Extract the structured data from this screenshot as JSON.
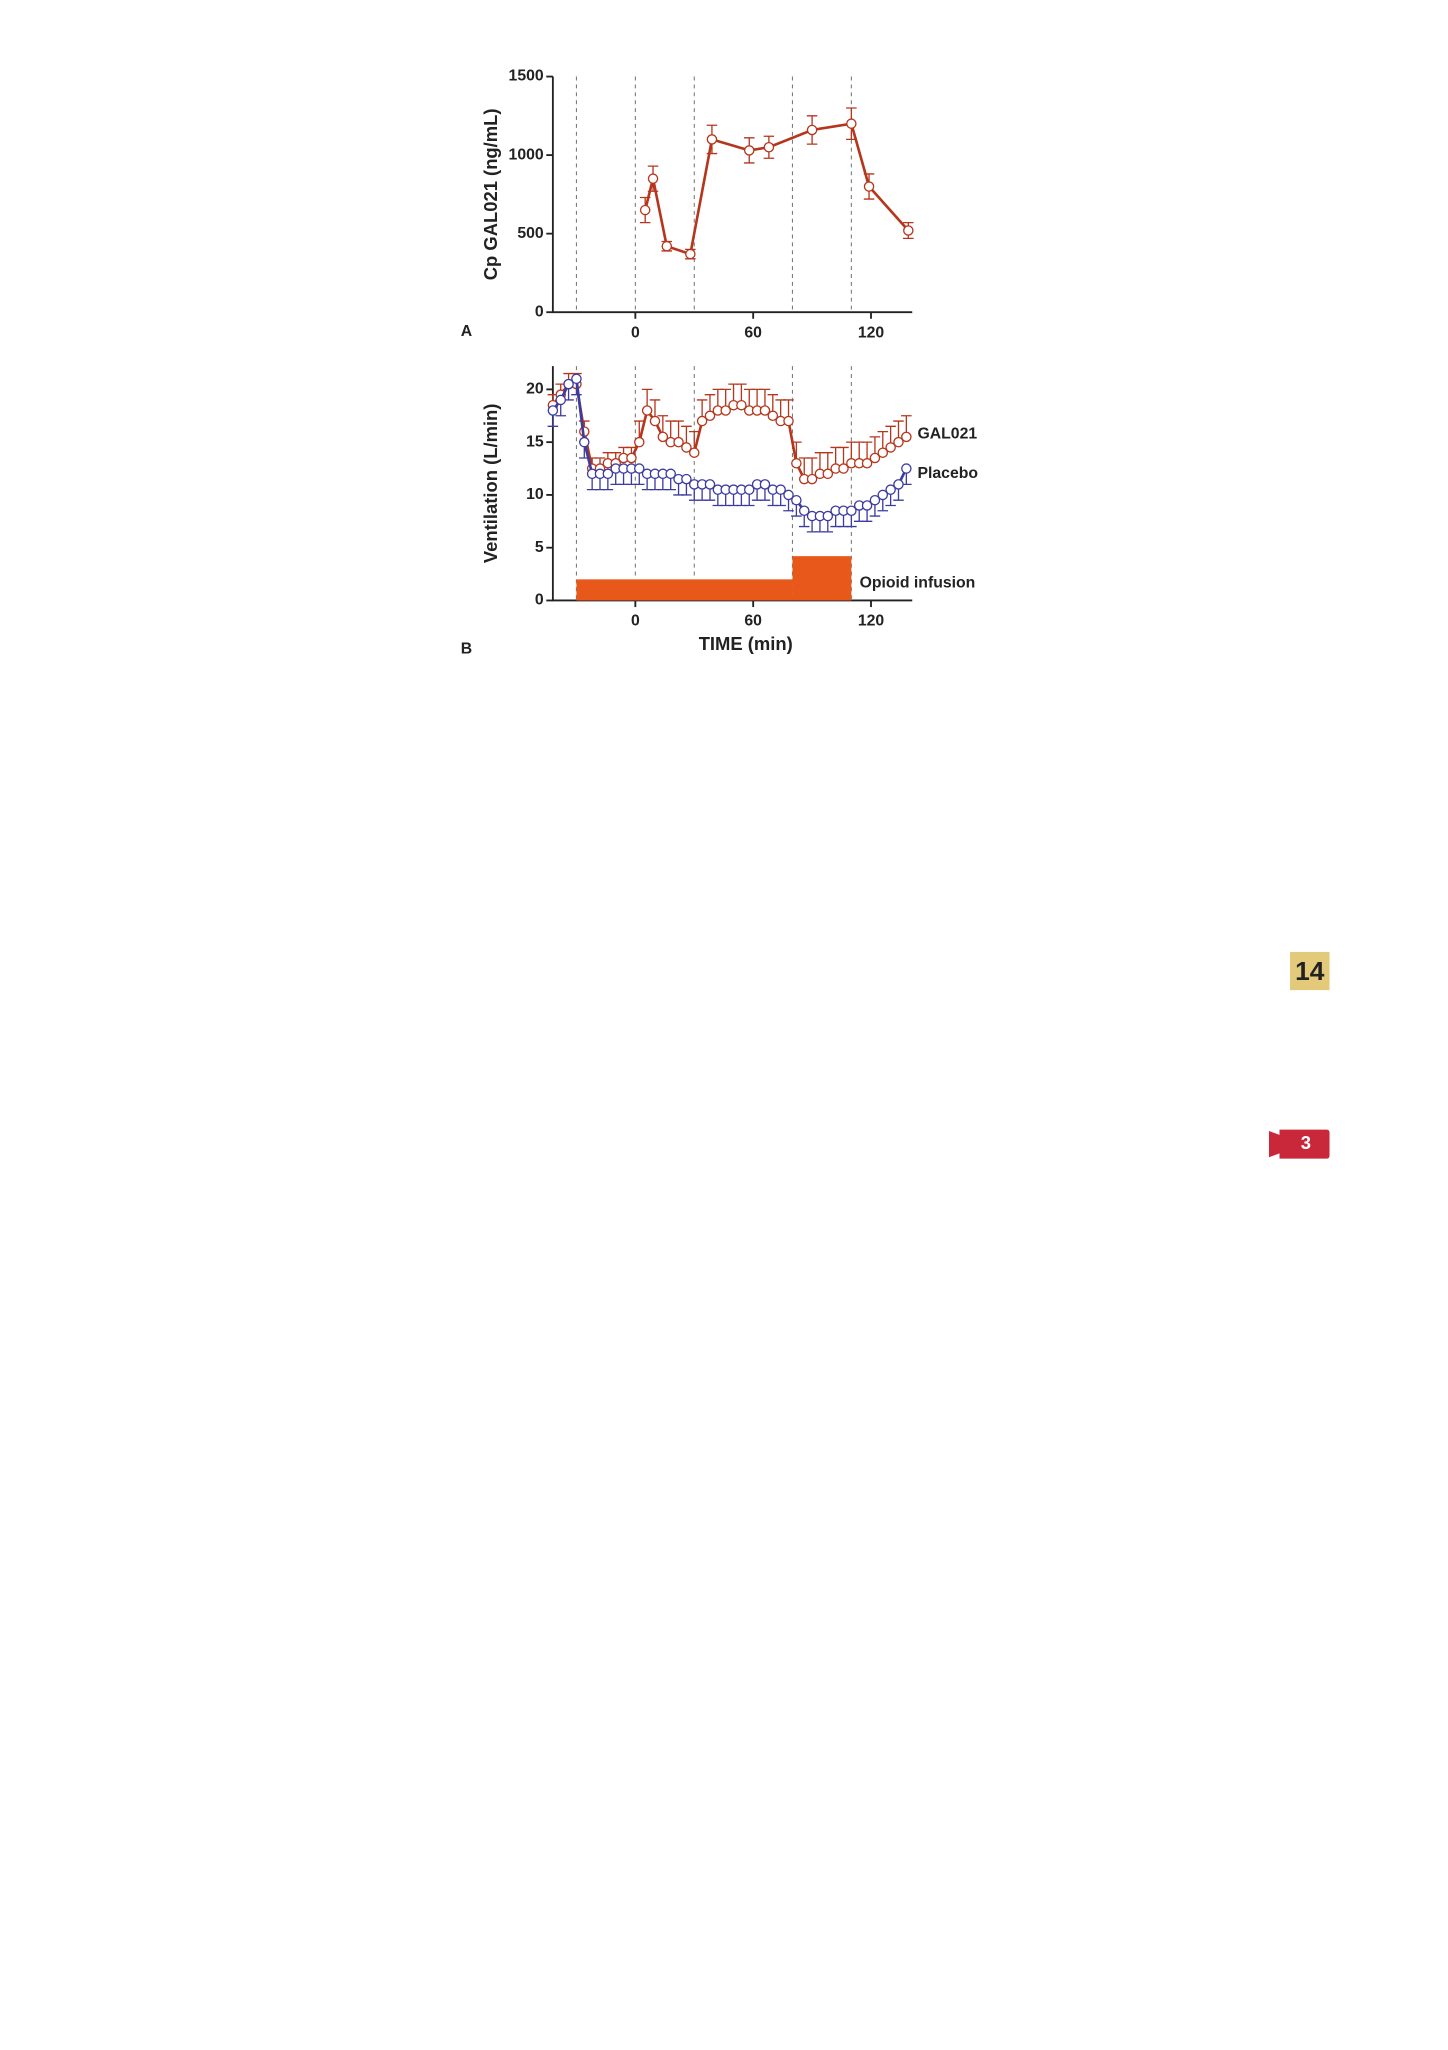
{
  "chart_data": [
    {
      "type": "line",
      "panel_label": "A",
      "ylabel": "Cp GAL021 (ng/mL)",
      "xlim": [
        -42,
        141
      ],
      "xticks": [
        0,
        60,
        120
      ],
      "ylim": [
        0,
        1500
      ],
      "yticks": [
        0,
        500,
        1000,
        1500
      ],
      "vlines": [
        -30,
        0,
        30,
        80,
        110
      ],
      "series": [
        {
          "name": null,
          "color": "#b5361c",
          "x": [
            5,
            9,
            16,
            28,
            39,
            58,
            68,
            90,
            110,
            119,
            139
          ],
          "values": [
            650,
            850,
            420,
            370,
            1100,
            1030,
            1050,
            1160,
            1200,
            800,
            520
          ],
          "errors": [
            80,
            80,
            30,
            30,
            90,
            80,
            70,
            90,
            100,
            80,
            50
          ]
        }
      ]
    },
    {
      "type": "line",
      "panel_label": "B",
      "xlabel": "TIME (min)",
      "ylabel": "Ventilation (L/min)",
      "xlim": [
        -42,
        141
      ],
      "xticks": [
        0,
        60,
        120
      ],
      "ylim": [
        0,
        22.2
      ],
      "yticks": [
        0,
        5,
        10,
        15,
        20
      ],
      "vlines": [
        -30,
        0,
        30,
        80,
        110
      ],
      "x": [
        -42,
        -38,
        -34,
        -30,
        -26,
        -22,
        -18,
        -14,
        -10,
        -6,
        -2,
        2,
        6,
        10,
        14,
        18,
        22,
        26,
        30,
        34,
        38,
        42,
        46,
        50,
        54,
        58,
        62,
        66,
        70,
        74,
        78,
        82,
        86,
        90,
        94,
        98,
        102,
        106,
        110,
        114,
        118,
        122,
        126,
        130,
        134,
        138
      ],
      "series": [
        {
          "name": "GAL021",
          "color": "#b5361c",
          "error_direction": "up",
          "values": [
            18.5,
            19.5,
            20.5,
            20.5,
            16,
            12.5,
            12.5,
            13,
            13,
            13.5,
            13.5,
            15,
            18,
            17,
            15.5,
            15,
            15,
            14.5,
            14,
            17,
            17.5,
            18,
            18,
            18.5,
            18.5,
            18,
            18,
            18,
            17.5,
            17,
            17,
            13,
            11.5,
            11.5,
            12,
            12,
            12.5,
            12.5,
            13,
            13,
            13,
            13.5,
            14,
            14.5,
            15,
            15.5
          ],
          "errors": [
            1,
            1,
            1,
            1,
            1,
            1,
            1,
            1,
            1,
            1,
            1,
            2,
            2,
            2,
            2,
            2,
            2,
            2,
            2,
            2,
            2,
            2,
            2,
            2,
            2,
            2,
            2,
            2,
            2,
            2,
            2,
            2,
            2,
            2,
            2,
            2,
            2,
            2,
            2,
            2,
            2,
            2,
            2,
            2,
            2,
            2
          ]
        },
        {
          "name": "Placebo",
          "color": "#3c3ca0",
          "error_direction": "down",
          "values": [
            18,
            19,
            20.5,
            21,
            15,
            12,
            12,
            12,
            12.5,
            12.5,
            12.5,
            12.5,
            12,
            12,
            12,
            12,
            11.5,
            11.5,
            11,
            11,
            11,
            10.5,
            10.5,
            10.5,
            10.5,
            10.5,
            11,
            11,
            10.5,
            10.5,
            10,
            9.5,
            8.5,
            8,
            8,
            8,
            8.5,
            8.5,
            8.5,
            9,
            9,
            9.5,
            10,
            10.5,
            11,
            12.5
          ],
          "errors": [
            1.5,
            1.5,
            1.5,
            1.5,
            1.5,
            1.5,
            1.5,
            1.5,
            1.5,
            1.5,
            1.5,
            1.5,
            1.5,
            1.5,
            1.5,
            1.5,
            1.5,
            1.5,
            1.5,
            1.5,
            1.5,
            1.5,
            1.5,
            1.5,
            1.5,
            1.5,
            1.5,
            1.5,
            1.5,
            1.5,
            1.5,
            1.5,
            1.5,
            1.5,
            1.5,
            1.5,
            1.5,
            1.5,
            1.5,
            1.5,
            1.5,
            1.5,
            1.5,
            1.5,
            1.5,
            1.5
          ]
        }
      ],
      "infusion": {
        "label": "Opioid infusion",
        "color": "#e8581a",
        "segments": [
          {
            "start": -30,
            "end": 80,
            "level": 2
          },
          {
            "start": 80,
            "end": 110,
            "level": 4.2
          }
        ]
      }
    }
  ],
  "page_badge": "14",
  "video_badge": "3"
}
